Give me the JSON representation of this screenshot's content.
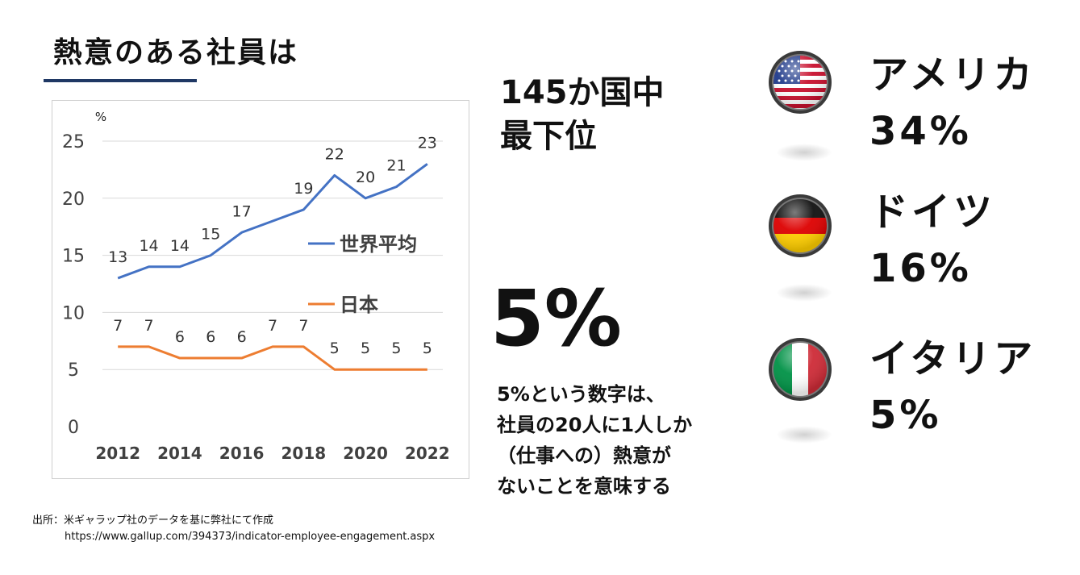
{
  "title": "熱意のある社員は",
  "rank_text": [
    "145か国中",
    "最下位"
  ],
  "japan_pct": "5%",
  "description": [
    "5%という数字は、",
    "社員の20人に1人しか",
    "（仕事への）熱意が",
    "ないことを意味する"
  ],
  "countries": [
    {
      "name": "アメリカ",
      "value": "34%",
      "flag": "us-flag"
    },
    {
      "name": "ドイツ",
      "value": "16%",
      "flag": "germany-flag"
    },
    {
      "name": "イタリア",
      "value": "5%",
      "flag": "italy-flag"
    }
  ],
  "source": {
    "line1": "出所：米ギャラップ社のデータを基に弊社にて作成",
    "line2": "https://www.gallup.com/394373/indicator-employee-engagement.aspx"
  },
  "colors": {
    "world": "#4472c4",
    "japan": "#ed7d31",
    "title_underline": "#1f3864"
  },
  "chart_data": {
    "type": "line",
    "x": [
      2012,
      2013,
      2014,
      2015,
      2016,
      2017,
      2018,
      2019,
      2020,
      2021,
      2022
    ],
    "x_tick_labels": [
      "2012",
      "2014",
      "2016",
      "2018",
      "2020",
      "2022"
    ],
    "x_tick_values": [
      2012,
      2014,
      2016,
      2018,
      2020,
      2022
    ],
    "y_tick_labels": [
      "0",
      "5",
      "10",
      "15",
      "20",
      "25"
    ],
    "ylabel": "%",
    "ylim": [
      0,
      25
    ],
    "grid": true,
    "series": [
      {
        "name": "世界平均",
        "values": [
          13,
          14,
          14,
          15,
          17,
          18,
          19,
          22,
          20,
          21,
          23
        ],
        "labels": [
          "13",
          "14",
          "14",
          "15",
          "17",
          null,
          "19",
          "22",
          "20",
          "21",
          "23"
        ]
      },
      {
        "name": "日本",
        "values": [
          7,
          7,
          6,
          6,
          6,
          7,
          7,
          5,
          5,
          5,
          5
        ],
        "labels": [
          "7",
          "7",
          "6",
          "6",
          "6",
          "7",
          "7",
          "5",
          "5",
          "5",
          "5"
        ]
      }
    ]
  }
}
